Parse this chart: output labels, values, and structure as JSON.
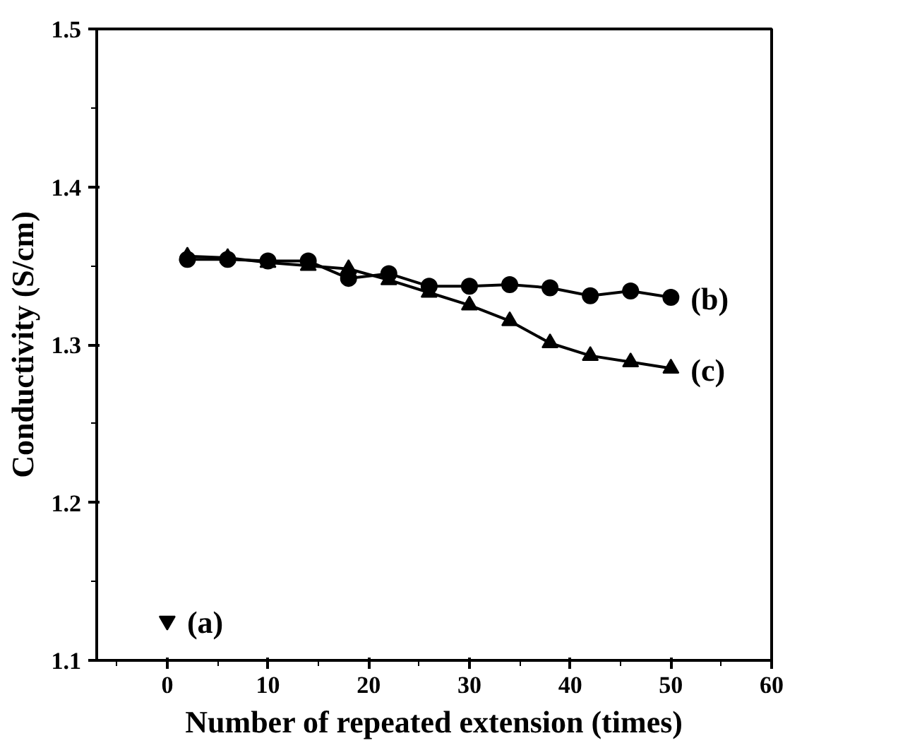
{
  "chart_data": {
    "type": "line",
    "xlabel": "Number of repeated extension (times)",
    "ylabel": "Conductivity (S/cm)",
    "xlim": [
      -7,
      60
    ],
    "ylim": [
      1.1,
      1.5
    ],
    "xticks": [
      0,
      10,
      20,
      30,
      40,
      50,
      60
    ],
    "yticks": [
      1.1,
      1.2,
      1.3,
      1.4,
      1.5
    ],
    "grid": false,
    "legend": false,
    "line_style": "solid",
    "series": [
      {
        "name": "(a)",
        "type": "scatter",
        "color": "#000000",
        "x": [
          0
        ],
        "values": [
          1.125
        ]
      },
      {
        "name": "(b)",
        "marker": "circle",
        "color": "#000000",
        "x": [
          2,
          6,
          10,
          14,
          18,
          22,
          26,
          30,
          34,
          38,
          42,
          46,
          50
        ],
        "values": [
          1.354,
          1.354,
          1.353,
          1.353,
          1.342,
          1.345,
          1.337,
          1.337,
          1.338,
          1.336,
          1.331,
          1.334,
          1.33
        ]
      },
      {
        "name": "(c)",
        "marker": "triangle",
        "color": "#000000",
        "x": [
          2,
          6,
          10,
          14,
          18,
          22,
          26,
          30,
          34,
          38,
          42,
          46,
          50
        ],
        "values": [
          1.356,
          1.355,
          1.352,
          1.35,
          1.348,
          1.341,
          1.333,
          1.325,
          1.315,
          1.301,
          1.293,
          1.289,
          1.285
        ]
      }
    ]
  }
}
